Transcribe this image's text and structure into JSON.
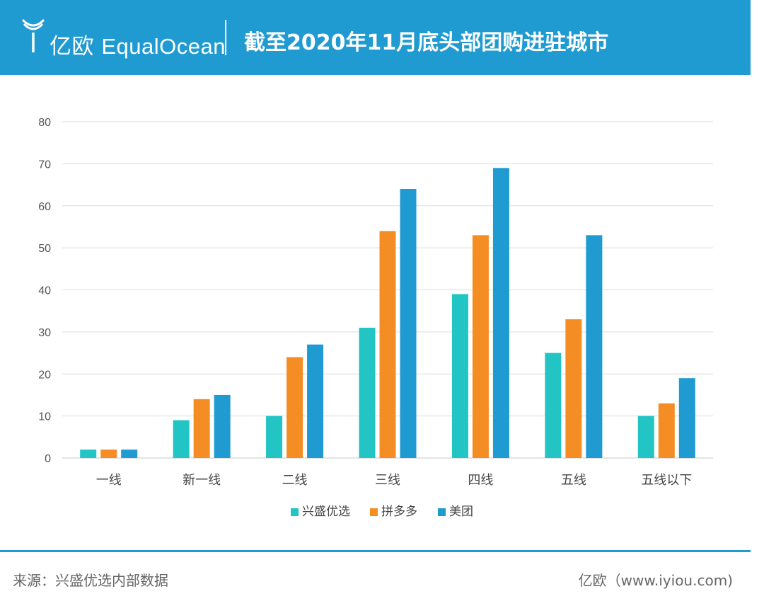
{
  "header": {
    "logo_cn": "亿欧",
    "logo_en": "EqualOcean",
    "title": "截至2020年11月底头部团购进驻城市"
  },
  "chart_data": {
    "type": "bar",
    "title": "",
    "xlabel": "",
    "ylabel": "",
    "categories": [
      "一线",
      "新一线",
      "二线",
      "三线",
      "四线",
      "五线",
      "五线以下"
    ],
    "series": [
      {
        "name": "兴盛优选",
        "color": "#22c4c4",
        "values": [
          2,
          9,
          10,
          31,
          39,
          25,
          10
        ]
      },
      {
        "name": "拼多多",
        "color": "#f58d25",
        "values": [
          2,
          14,
          24,
          54,
          53,
          33,
          13
        ]
      },
      {
        "name": "美团",
        "color": "#1f9bd1",
        "values": [
          2,
          15,
          27,
          64,
          69,
          53,
          19
        ]
      }
    ],
    "ylim": [
      0,
      80
    ],
    "yticks": [
      0,
      10,
      20,
      30,
      40,
      50,
      60,
      70,
      80
    ],
    "grid": true,
    "legend": "bottom-center"
  },
  "footer": {
    "source": "来源：兴盛优选内部数据",
    "site": "亿欧（www.iyiou.com)"
  }
}
